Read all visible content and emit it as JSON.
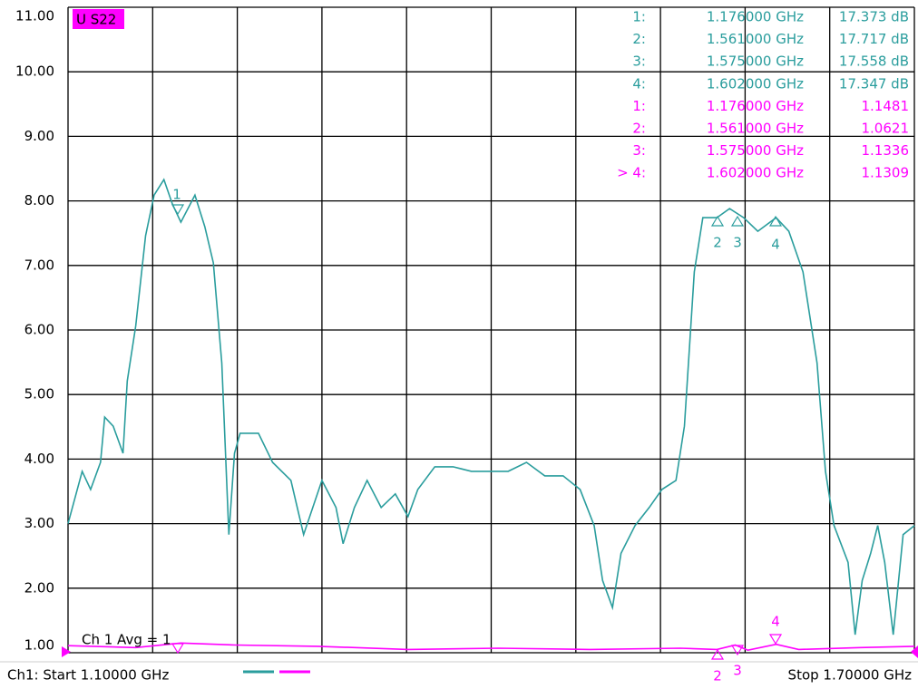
{
  "chart_data": {
    "type": "line",
    "trace_label": "U S22",
    "xlim": [
      1.1,
      1.7
    ],
    "xticks": [
      1.1,
      1.16,
      1.22,
      1.28,
      1.34,
      1.4,
      1.46,
      1.52,
      1.58,
      1.64,
      1.7
    ],
    "ylim": [
      1,
      11
    ],
    "yticks": [
      {
        "value": 1,
        "label": "1.00"
      },
      {
        "value": 2,
        "label": "2.00"
      },
      {
        "value": 3,
        "label": "3.00"
      },
      {
        "value": 4,
        "label": "4.00"
      },
      {
        "value": 5,
        "label": "5.00"
      },
      {
        "value": 6,
        "label": "6.00"
      },
      {
        "value": 7,
        "label": "7.00"
      },
      {
        "value": 8,
        "label": "8.00"
      },
      {
        "value": 9,
        "label": "9.00"
      },
      {
        "value": 10,
        "label": "10.00"
      },
      {
        "value": 11,
        "label": "11.00"
      }
    ],
    "grid": true,
    "series": [
      {
        "color": "#2a9d9d",
        "x": [
          1.1,
          1.11,
          1.116,
          1.123,
          1.126,
          1.132,
          1.139,
          1.142,
          1.148,
          1.155,
          1.161,
          1.168,
          1.174,
          1.18,
          1.19,
          1.197,
          1.203,
          1.209,
          1.214,
          1.218,
          1.222,
          1.235,
          1.245,
          1.258,
          1.267,
          1.28,
          1.29,
          1.295,
          1.303,
          1.312,
          1.322,
          1.332,
          1.341,
          1.348,
          1.36,
          1.373,
          1.386,
          1.399,
          1.412,
          1.425,
          1.438,
          1.451,
          1.463,
          1.473,
          1.479,
          1.486,
          1.492,
          1.502,
          1.512,
          1.521,
          1.531,
          1.537,
          1.544,
          1.55,
          1.56,
          1.569,
          1.579,
          1.589,
          1.602,
          1.611,
          1.621,
          1.631,
          1.637,
          1.643,
          1.653,
          1.658,
          1.663,
          1.669,
          1.674,
          1.679,
          1.685,
          1.692,
          1.7
        ],
        "values": [
          3.0,
          3.81,
          3.53,
          3.95,
          4.65,
          4.51,
          4.09,
          5.21,
          6.06,
          7.46,
          8.09,
          8.33,
          7.95,
          7.67,
          8.09,
          7.6,
          7.04,
          5.49,
          2.83,
          4.09,
          4.4,
          4.4,
          3.95,
          3.67,
          2.83,
          3.67,
          3.25,
          2.69,
          3.25,
          3.67,
          3.25,
          3.46,
          3.11,
          3.53,
          3.88,
          3.88,
          3.81,
          3.81,
          3.81,
          3.95,
          3.74,
          3.74,
          3.53,
          2.97,
          2.12,
          1.7,
          2.54,
          2.97,
          3.25,
          3.53,
          3.67,
          4.51,
          6.9,
          7.74,
          7.74,
          7.88,
          7.74,
          7.53,
          7.74,
          7.53,
          6.9,
          5.49,
          3.81,
          2.97,
          2.4,
          1.28,
          2.12,
          2.54,
          2.97,
          2.4,
          1.28,
          2.83,
          2.97
        ]
      },
      {
        "color": "#ff00ff",
        "x": [
          1.1,
          1.148,
          1.18,
          1.219,
          1.277,
          1.341,
          1.405,
          1.47,
          1.534,
          1.56,
          1.573,
          1.582,
          1.602,
          1.618,
          1.662,
          1.7
        ],
        "values": [
          1.11,
          1.08,
          1.15,
          1.12,
          1.1,
          1.05,
          1.07,
          1.05,
          1.07,
          1.05,
          1.12,
          1.04,
          1.13,
          1.05,
          1.08,
          1.1
        ]
      }
    ],
    "marker_table": [
      [
        "1:",
        "1.176000 GHz",
        "17.373 dB"
      ],
      [
        "2:",
        "1.561000 GHz",
        "17.717 dB"
      ],
      [
        "3:",
        "1.575000 GHz",
        "17.558 dB"
      ],
      [
        "4:",
        "1.602000 GHz",
        "17.347 dB"
      ],
      [
        "1:",
        "1.176000 GHz",
        "1.1481"
      ],
      [
        "2:",
        "1.561000 GHz",
        "1.0621"
      ],
      [
        "3:",
        "1.575000 GHz",
        "1.1336"
      ],
      [
        "> 4:",
        "1.602000 GHz",
        "1.1309"
      ]
    ],
    "marker_labels": [
      "1",
      "2",
      "3",
      "4"
    ],
    "averaging": "Ch 1 Avg =   1",
    "start": "Ch1: Start  1.10000 GHz",
    "stop": "Stop  1.70000 GHz"
  }
}
